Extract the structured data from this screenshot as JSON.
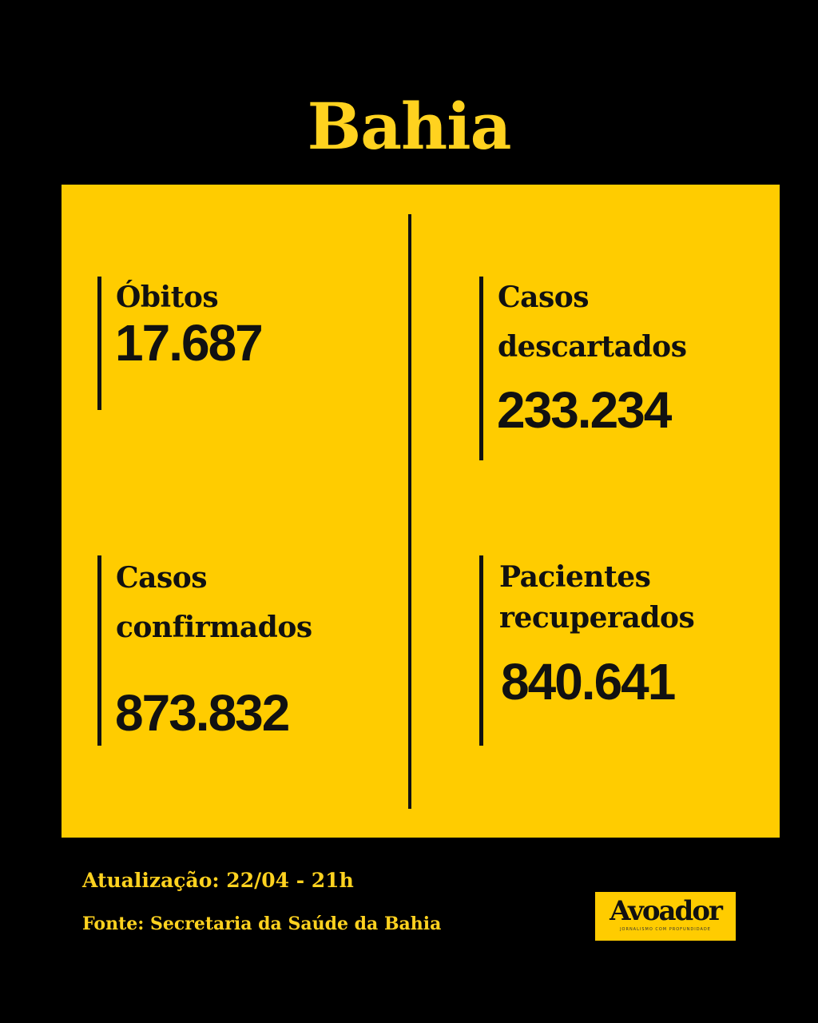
{
  "title": "Bahia",
  "stats": [
    {
      "label_lines": [
        "Óbitos"
      ],
      "value": "17.687"
    },
    {
      "label_lines": [
        "Casos",
        "descartados"
      ],
      "value": "233.234"
    },
    {
      "label_lines": [
        "Casos",
        "confirmados"
      ],
      "value": "873.832"
    },
    {
      "label_lines": [
        "Pacientes",
        "recuperados"
      ],
      "value": "840.641"
    }
  ],
  "footer": {
    "update": "Atualização: 22/04 - 21h",
    "source": "Fonte: Secretaria da Saúde da Bahia"
  },
  "logo": {
    "name": "Avoador",
    "tagline": "JORNALISMO COM PROFUNDIDADE"
  },
  "colors": {
    "background": "#000000",
    "accent": "#FFCC00",
    "text": "#111111"
  }
}
